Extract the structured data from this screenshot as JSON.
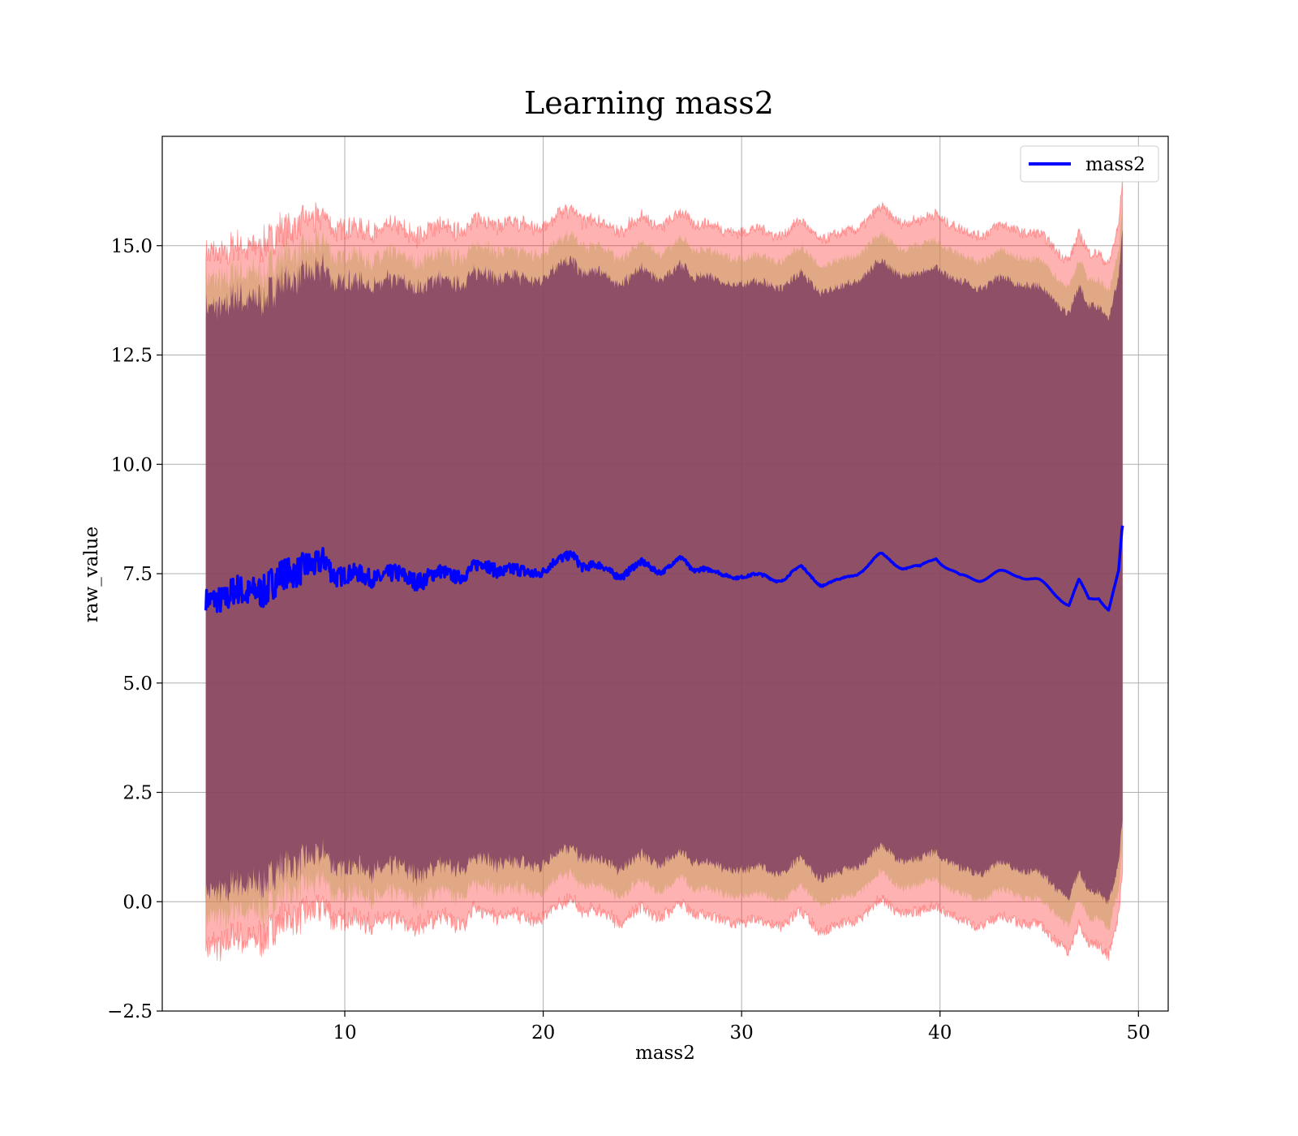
{
  "chart_data": {
    "type": "line",
    "title": "Learning mass2",
    "xlabel": "mass2",
    "ylabel": "raw_value",
    "xlim": [
      0.8,
      51.5
    ],
    "ylim": [
      -2.5,
      17.5
    ],
    "xticks": [
      10,
      20,
      30,
      40,
      50
    ],
    "xtick_labels": [
      "10",
      "20",
      "30",
      "40",
      "50"
    ],
    "yticks": [
      -2.5,
      0,
      2.5,
      5,
      7.5,
      10,
      12.5,
      15
    ],
    "ytick_labels": [
      "−2.5",
      "0.0",
      "2.5",
      "5.0",
      "7.5",
      "10.0",
      "12.5",
      "15.0"
    ],
    "grid": true,
    "legend_position": "top-right",
    "colors": {
      "line": "#0000ff",
      "band_outer": "#ff0000",
      "band_middle": "#c8a060",
      "band_inner": "#804060"
    },
    "series": [
      {
        "name": "mass2",
        "x": [
          3.0,
          3.5,
          4.0,
          4.5,
          5.0,
          5.5,
          6.0,
          6.5,
          7.0,
          7.5,
          8.0,
          8.5,
          9.0,
          9.5,
          10.0,
          11.0,
          12.0,
          13.0,
          14.0,
          15.0,
          16.0,
          17.0,
          18.0,
          19.0,
          20.0,
          21.0,
          21.5,
          22.0,
          23.0,
          24.0,
          25.0,
          26.0,
          27.0,
          27.5,
          28.0,
          29.0,
          30.0,
          31.0,
          32.0,
          33.0,
          34.0,
          35.0,
          36.0,
          37.0,
          38.0,
          39.0,
          39.8,
          40.5,
          41.0,
          42.0,
          43.0,
          44.0,
          45.0,
          46.0,
          46.5,
          47.0,
          47.5,
          48.0,
          48.5,
          49.0,
          49.2
        ],
        "values": [
          6.9,
          7.0,
          6.9,
          7.1,
          7.0,
          7.2,
          7.1,
          7.3,
          7.5,
          7.6,
          7.7,
          7.6,
          7.8,
          7.5,
          7.5,
          7.4,
          7.5,
          7.4,
          7.4,
          7.5,
          7.5,
          7.7,
          7.6,
          7.5,
          7.6,
          7.8,
          8.0,
          7.7,
          7.6,
          7.5,
          7.7,
          7.6,
          7.8,
          7.6,
          7.7,
          7.4,
          7.5,
          7.4,
          7.4,
          7.6,
          7.3,
          7.3,
          7.6,
          7.9,
          7.7,
          7.6,
          7.9,
          7.6,
          7.4,
          7.4,
          7.5,
          7.5,
          7.3,
          7.0,
          6.8,
          7.3,
          6.9,
          7.0,
          6.7,
          7.5,
          8.6
        ],
        "noise": [
          0.25,
          0.3,
          0.35,
          0.35,
          0.35,
          0.35,
          0.4,
          0.4,
          0.35,
          0.35,
          0.35,
          0.3,
          0.3,
          0.25,
          0.2,
          0.2,
          0.2,
          0.2,
          0.2,
          0.15,
          0.15,
          0.15,
          0.15,
          0.15,
          0.1,
          0.1,
          0.1,
          0.1,
          0.08,
          0.08,
          0.08,
          0.05,
          0.05,
          0.05,
          0.05,
          0.03,
          0.03,
          0.03,
          0.02,
          0.02,
          0.02,
          0.01,
          0.01,
          0.01,
          0.01,
          0.01,
          0.0,
          0.0,
          0.0,
          0.0,
          0.0,
          0.0,
          0.0,
          0.0,
          0.0,
          0.0,
          0.0,
          0.0,
          0.0,
          0.0,
          0.0
        ],
        "band_outer_halfwidth": 7.9,
        "band_middle_halfwidth": 7.3,
        "band_inner_halfwidth": 6.7
      }
    ],
    "legend": [
      {
        "label": "mass2",
        "color": "#0000ff"
      }
    ]
  }
}
